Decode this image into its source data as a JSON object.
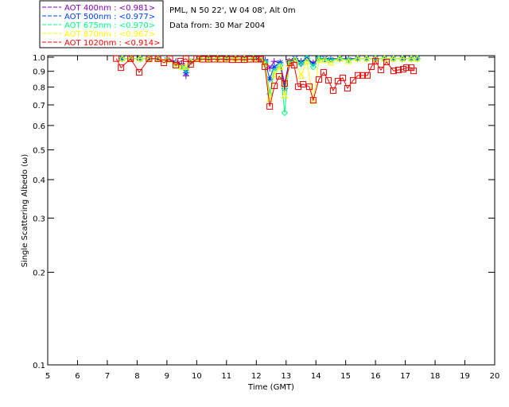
{
  "chart_data": {
    "type": "line",
    "title_lines": [
      "PML, N 50 22', W 04 08', Alt 0m",
      "Data from: 30 Mar 2004"
    ],
    "xlabel": "Time (GMT)",
    "ylabel": "Single Scattering Albedo (ω)",
    "xlim": [
      5,
      20
    ],
    "ylim": [
      0.1,
      1.0
    ],
    "yscale": "log",
    "xticks": [
      "5",
      "6",
      "7",
      "8",
      "9",
      "10",
      "11",
      "12",
      "13",
      "14",
      "15",
      "16",
      "17",
      "18",
      "19",
      "20"
    ],
    "yticks": [
      "1.0",
      "0.9",
      "0.8",
      "0.7",
      "0.6",
      "0.5",
      "0.4",
      "0.3",
      "0.2",
      "0.1"
    ],
    "legend_placement": "top-left, outside",
    "series": [
      {
        "name": "AOT  400nm : <0.981>",
        "color": "#8000c0",
        "marker": "plus",
        "x": [
          7.5,
          7.8,
          8.1,
          8.4,
          8.7,
          9.0,
          9.3,
          9.5,
          9.64,
          9.8,
          10.1,
          10.4,
          10.7,
          11.0,
          11.3,
          11.6,
          11.9,
          12.15,
          12.3,
          12.45,
          12.6,
          12.8,
          12.95,
          13.1,
          13.3,
          13.5,
          13.7,
          13.91,
          14.1,
          14.3,
          14.5,
          14.8,
          15.1,
          15.4,
          15.7,
          16.0,
          16.3,
          16.6,
          16.9,
          17.2,
          17.4
        ],
        "y": [
          0.99,
          0.99,
          0.99,
          0.99,
          0.99,
          0.98,
          0.97,
          0.95,
          0.87,
          0.97,
          0.99,
          0.99,
          0.99,
          0.99,
          0.99,
          0.99,
          0.99,
          0.99,
          0.98,
          0.92,
          0.97,
          0.96,
          0.82,
          0.97,
          0.99,
          0.97,
          0.99,
          0.96,
          0.99,
          0.99,
          0.99,
          0.99,
          0.99,
          0.99,
          0.99,
          0.99,
          0.99,
          0.99,
          0.99,
          0.99,
          0.99
        ]
      },
      {
        "name": "AOT  500nm : <0.977>",
        "color": "#0040ff",
        "marker": "asterisk",
        "x": [
          7.5,
          7.8,
          8.1,
          8.4,
          8.7,
          9.0,
          9.3,
          9.5,
          9.64,
          9.8,
          10.1,
          10.4,
          10.7,
          11.0,
          11.3,
          11.6,
          11.9,
          12.15,
          12.3,
          12.45,
          12.6,
          12.8,
          12.95,
          13.1,
          13.3,
          13.5,
          13.7,
          13.91,
          14.1,
          14.3,
          14.5,
          14.8,
          15.1,
          15.4,
          15.7,
          16.0,
          16.3,
          16.6,
          16.9,
          17.2,
          17.4
        ],
        "y": [
          0.99,
          0.99,
          0.99,
          0.99,
          0.99,
          0.98,
          0.96,
          0.94,
          0.89,
          0.97,
          0.99,
          0.99,
          0.99,
          0.99,
          0.99,
          0.99,
          0.99,
          0.98,
          0.97,
          0.85,
          0.93,
          0.96,
          0.79,
          0.97,
          0.99,
          0.96,
          0.99,
          0.95,
          0.99,
          0.99,
          0.98,
          0.99,
          0.98,
          0.99,
          0.99,
          0.99,
          0.99,
          0.99,
          0.99,
          0.99,
          0.99
        ]
      },
      {
        "name": "AOT  675nm : <0.970>",
        "color": "#00ff80",
        "marker": "diamond",
        "x": [
          7.5,
          7.8,
          8.1,
          8.4,
          8.7,
          9.0,
          9.3,
          9.5,
          9.64,
          9.8,
          10.1,
          10.4,
          10.7,
          11.0,
          11.3,
          11.6,
          11.9,
          12.15,
          12.3,
          12.45,
          12.6,
          12.8,
          12.95,
          13.1,
          13.3,
          13.5,
          13.7,
          13.91,
          14.1,
          14.3,
          14.5,
          14.8,
          15.1,
          15.4,
          15.7,
          16.0,
          16.3,
          16.6,
          16.9,
          17.2,
          17.4
        ],
        "y": [
          0.99,
          0.99,
          0.99,
          0.99,
          0.99,
          0.98,
          0.95,
          0.93,
          0.91,
          0.97,
          0.99,
          0.99,
          0.99,
          0.99,
          0.99,
          0.99,
          0.99,
          0.98,
          0.96,
          0.76,
          0.9,
          0.94,
          0.66,
          0.96,
          0.98,
          0.95,
          0.99,
          0.93,
          0.99,
          0.98,
          0.98,
          0.99,
          0.98,
          0.99,
          0.99,
          0.99,
          0.99,
          0.99,
          0.99,
          0.99,
          0.99
        ]
      },
      {
        "name": "AOT  870nm : <0.967>",
        "color": "#ffff00",
        "marker": "triangle",
        "x": [
          7.5,
          7.8,
          8.1,
          8.4,
          8.7,
          9.0,
          9.3,
          9.5,
          9.64,
          9.8,
          10.1,
          10.4,
          10.7,
          11.0,
          11.3,
          11.6,
          11.9,
          12.15,
          12.3,
          12.45,
          12.6,
          12.8,
          12.95,
          13.1,
          13.3,
          13.5,
          13.7,
          13.91,
          14.1,
          14.3,
          14.5,
          14.8,
          15.1,
          15.4,
          15.7,
          16.0,
          16.3,
          16.6,
          16.9,
          17.2,
          17.4
        ],
        "y": [
          0.99,
          0.99,
          0.99,
          0.99,
          0.99,
          0.98,
          0.95,
          0.93,
          0.93,
          0.97,
          0.99,
          0.99,
          0.99,
          0.99,
          0.99,
          0.99,
          0.99,
          0.98,
          0.95,
          0.73,
          0.88,
          0.93,
          0.75,
          0.95,
          0.98,
          0.87,
          0.97,
          0.72,
          0.98,
          0.98,
          0.96,
          0.99,
          0.97,
          0.99,
          0.99,
          0.99,
          0.99,
          0.99,
          0.99,
          0.99,
          0.99
        ]
      },
      {
        "name": "AOT 1020nm : <0.914>",
        "color": "#ff0000",
        "marker": "square",
        "x": [
          7.3,
          7.46,
          7.78,
          8.07,
          8.4,
          8.7,
          8.9,
          9.1,
          9.3,
          9.46,
          9.64,
          9.8,
          10.0,
          10.2,
          10.4,
          10.6,
          10.8,
          11.0,
          11.2,
          11.4,
          11.6,
          11.8,
          12.0,
          12.15,
          12.29,
          12.45,
          12.61,
          12.77,
          12.95,
          13.14,
          13.27,
          13.41,
          13.57,
          13.78,
          13.91,
          14.1,
          14.26,
          14.42,
          14.58,
          14.74,
          14.9,
          15.06,
          15.25,
          15.41,
          15.57,
          15.73,
          15.86,
          16.0,
          16.18,
          16.37,
          16.61,
          16.77,
          16.93,
          17.04,
          17.2,
          17.28
        ],
        "y": [
          0.99,
          0.925,
          0.989,
          0.893,
          0.989,
          0.989,
          0.959,
          0.989,
          0.942,
          0.971,
          0.989,
          0.948,
          0.989,
          0.985,
          0.985,
          0.985,
          0.985,
          0.985,
          0.982,
          0.982,
          0.982,
          0.985,
          0.985,
          0.985,
          0.931,
          0.692,
          0.807,
          0.867,
          0.822,
          0.959,
          0.942,
          0.802,
          0.817,
          0.802,
          0.725,
          0.847,
          0.893,
          0.841,
          0.779,
          0.836,
          0.857,
          0.793,
          0.841,
          0.873,
          0.873,
          0.873,
          0.931,
          0.971,
          0.909,
          0.965,
          0.903,
          0.909,
          0.914,
          0.925,
          0.925,
          0.903
        ]
      }
    ]
  }
}
